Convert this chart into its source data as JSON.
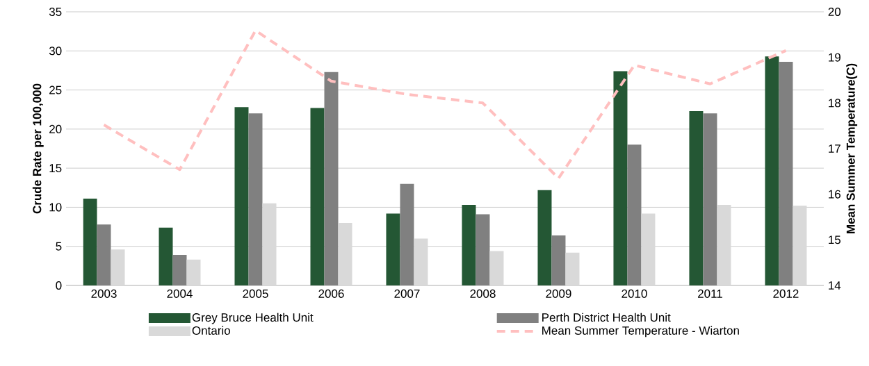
{
  "chart_data": {
    "type": "bar",
    "categories": [
      "2003",
      "2004",
      "2005",
      "2006",
      "2007",
      "2008",
      "2009",
      "2010",
      "2011",
      "2012"
    ],
    "series": [
      {
        "name": "Grey Bruce Health Unit",
        "color": "#245734",
        "values": [
          11.1,
          7.4,
          22.8,
          22.7,
          9.2,
          10.3,
          12.2,
          27.4,
          22.3,
          29.3
        ]
      },
      {
        "name": "Perth District Health Unit",
        "color": "#808080",
        "values": [
          7.8,
          3.9,
          22.0,
          27.3,
          13.0,
          9.1,
          6.4,
          18.0,
          22.0,
          28.6
        ]
      },
      {
        "name": "Ontario",
        "color": "#d9d9d9",
        "values": [
          4.6,
          3.3,
          10.5,
          8.0,
          6.0,
          4.4,
          4.2,
          9.2,
          10.3,
          10.2
        ]
      },
      {
        "name": "Mean Summer Temperature - Wiarton",
        "color": "#ffbfbf",
        "type": "line",
        "axis": "y2",
        "line_style": "dashed",
        "values": [
          17.52,
          16.54,
          19.59,
          18.48,
          18.19,
          18.0,
          16.35,
          18.83,
          18.42,
          19.15
        ]
      }
    ],
    "ylabel": "Crude Rate per 100,000",
    "y2label": "Mean Summer Temperature(C)",
    "ylim": [
      0,
      35
    ],
    "yticks": [
      0,
      5,
      10,
      15,
      20,
      25,
      30,
      35
    ],
    "y2lim": [
      14,
      20
    ],
    "y2ticks": [
      14,
      15,
      16,
      17,
      18,
      19,
      20
    ],
    "grid": "y",
    "legend": "bottom",
    "marker": "none"
  }
}
